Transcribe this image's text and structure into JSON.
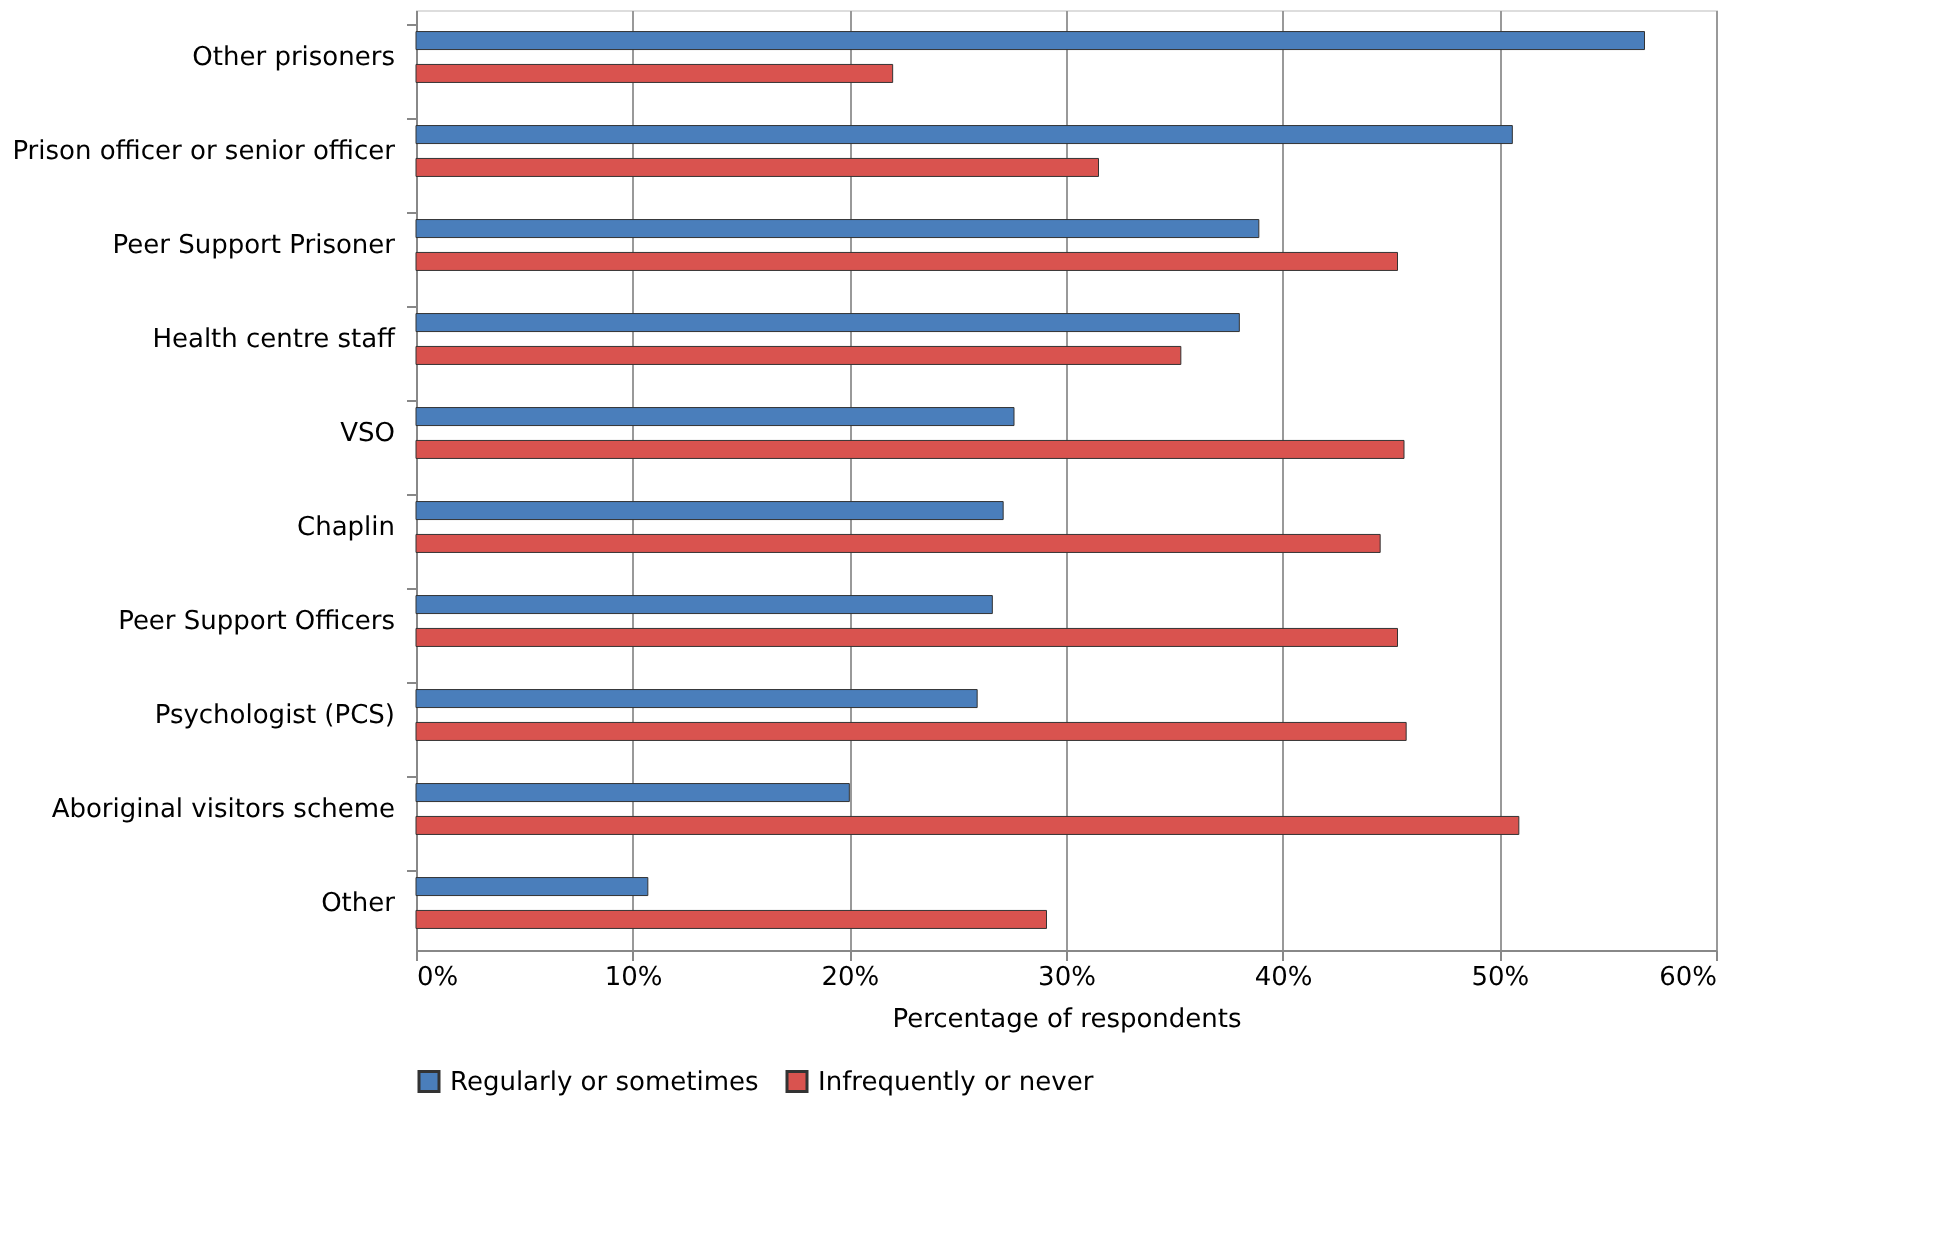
{
  "chart_data": {
    "type": "bar",
    "orientation": "horizontal",
    "xlabel": "Percentage of respondents",
    "categories": [
      "Other prisoners",
      "Prison officer or senior officer",
      "Peer Support Prisoner",
      "Health centre staff",
      "VSO",
      "Chaplin",
      "Peer Support Officers",
      "Psychologist (PCS)",
      "Aboriginal visitors scheme",
      "Other"
    ],
    "series": [
      {
        "name": "Regularly or sometimes",
        "color": "#4a7ebb",
        "values": [
          56.7,
          50.6,
          38.9,
          38.0,
          27.6,
          27.1,
          26.6,
          25.9,
          20.0,
          10.7
        ]
      },
      {
        "name": "Infrequently or never",
        "color": "#d9534f",
        "values": [
          22.0,
          31.5,
          45.3,
          35.3,
          45.6,
          44.5,
          45.3,
          45.7,
          50.9,
          29.1
        ]
      }
    ],
    "xlim": [
      0,
      60
    ],
    "xticks": [
      {
        "value": 0,
        "label": "0%"
      },
      {
        "value": 10,
        "label": "10%"
      },
      {
        "value": 20,
        "label": "20%"
      },
      {
        "value": 30,
        "label": "30%"
      },
      {
        "value": 40,
        "label": "40%"
      },
      {
        "value": 50,
        "label": "50%"
      },
      {
        "value": 60,
        "label": "60%"
      }
    ],
    "grid": "x",
    "legend": "bottom"
  }
}
